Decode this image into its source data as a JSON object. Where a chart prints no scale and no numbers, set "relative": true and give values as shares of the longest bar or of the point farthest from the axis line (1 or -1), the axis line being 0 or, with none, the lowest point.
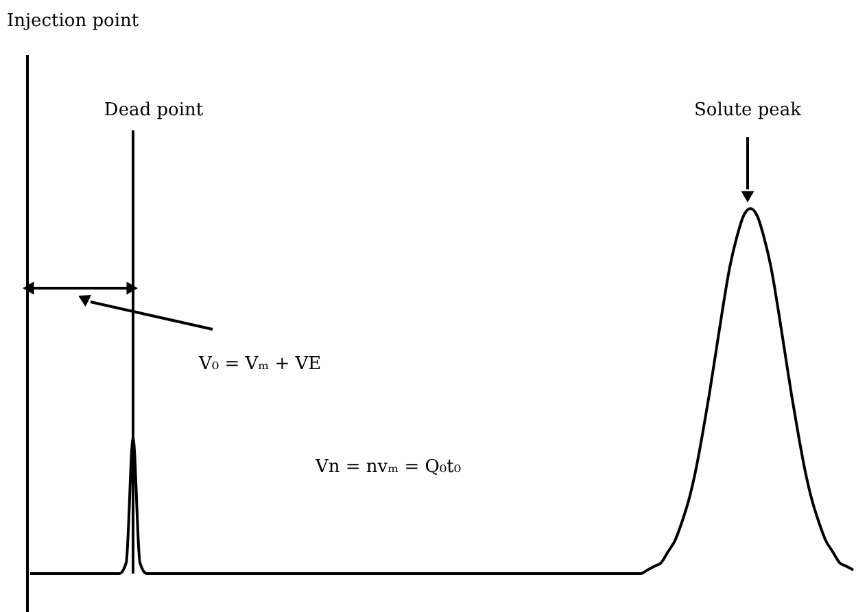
{
  "chart_data": {
    "type": "line",
    "relative": true,
    "tick_labels": false,
    "color": "#000000",
    "categories": [
      null,
      null,
      null,
      null,
      null,
      null,
      null,
      null,
      null,
      null,
      null,
      null,
      null,
      null,
      null,
      null,
      null,
      null,
      null,
      null,
      null,
      null,
      null,
      null,
      null,
      null,
      null,
      null,
      null,
      null,
      null,
      null,
      null,
      null,
      null,
      null,
      null,
      null,
      null,
      null,
      null,
      null,
      null,
      null,
      null,
      null,
      null,
      null,
      null,
      null,
      null,
      null,
      null,
      null,
      null,
      null,
      null,
      null,
      null,
      null,
      null,
      null,
      null,
      null,
      null,
      null,
      null,
      null,
      null,
      null,
      null,
      null,
      null,
      null,
      null,
      null,
      null,
      null,
      null,
      null,
      null,
      null,
      null,
      null,
      null,
      null,
      null,
      null,
      null,
      null,
      null,
      null,
      null,
      null,
      null,
      null,
      null,
      null,
      null,
      null,
      null,
      null,
      null,
      null,
      null,
      null,
      null,
      null,
      null,
      null,
      null,
      null,
      null,
      null,
      null,
      null,
      null,
      null,
      null,
      null,
      null
    ],
    "values": [
      0,
      0,
      0,
      0,
      0,
      0,
      0,
      0,
      0,
      0,
      0,
      0,
      0,
      0,
      0.03,
      0.37,
      0.03,
      0,
      0,
      0,
      0,
      0,
      0,
      0,
      0,
      0,
      0,
      0,
      0,
      0,
      0,
      0,
      0,
      0,
      0,
      0,
      0,
      0,
      0,
      0,
      0,
      0,
      0,
      0,
      0,
      0,
      0,
      0,
      0,
      0,
      0,
      0,
      0,
      0,
      0,
      0,
      0,
      0,
      0,
      0,
      0,
      0,
      0,
      0,
      0,
      0,
      0,
      0,
      0,
      0,
      0,
      0,
      0,
      0,
      0,
      0,
      0,
      0,
      0,
      0,
      0,
      0,
      0,
      0,
      0,
      0,
      0,
      0,
      0,
      0,
      0.01,
      0.02,
      0.03,
      0.06,
      0.09,
      0.14,
      0.2,
      0.28,
      0.38,
      0.49,
      0.61,
      0.73,
      0.84,
      0.92,
      0.98,
      1,
      0.98,
      0.92,
      0.84,
      0.73,
      0.61,
      0.49,
      0.38,
      0.28,
      0.2,
      0.14,
      0.09,
      0.06,
      0.03,
      0.02,
      0.01
    ],
    "annotations": [
      "Injection point",
      "Dead point",
      "Solute peak",
      "V₀ = Vₘ + VE",
      "Vn = nvₘ = Q₀t₀"
    ]
  }
}
